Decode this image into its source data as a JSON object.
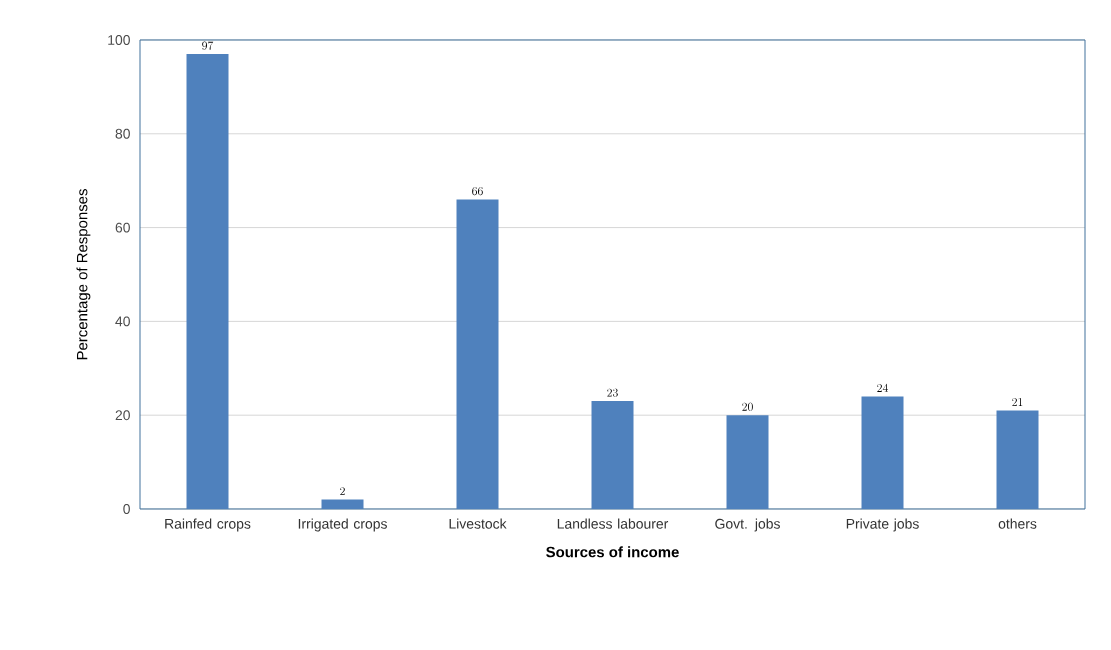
{
  "chart_data": {
    "type": "bar",
    "xlabel": "Sources of income",
    "ylabel": "Percentage of Responses",
    "categories": [
      "Rainfed crops",
      "Irrigated crops",
      "Livestock",
      "Landless labourer",
      "Govt. jobs",
      "Private jobs",
      "others"
    ],
    "values": [
      97,
      2,
      66,
      23,
      20,
      24,
      21
    ],
    "color": "#4f81bd",
    "ylim": [
      0,
      100
    ],
    "yticks": [
      0,
      20,
      40,
      60,
      80,
      100
    ],
    "grid": "y",
    "data_labels": true
  }
}
